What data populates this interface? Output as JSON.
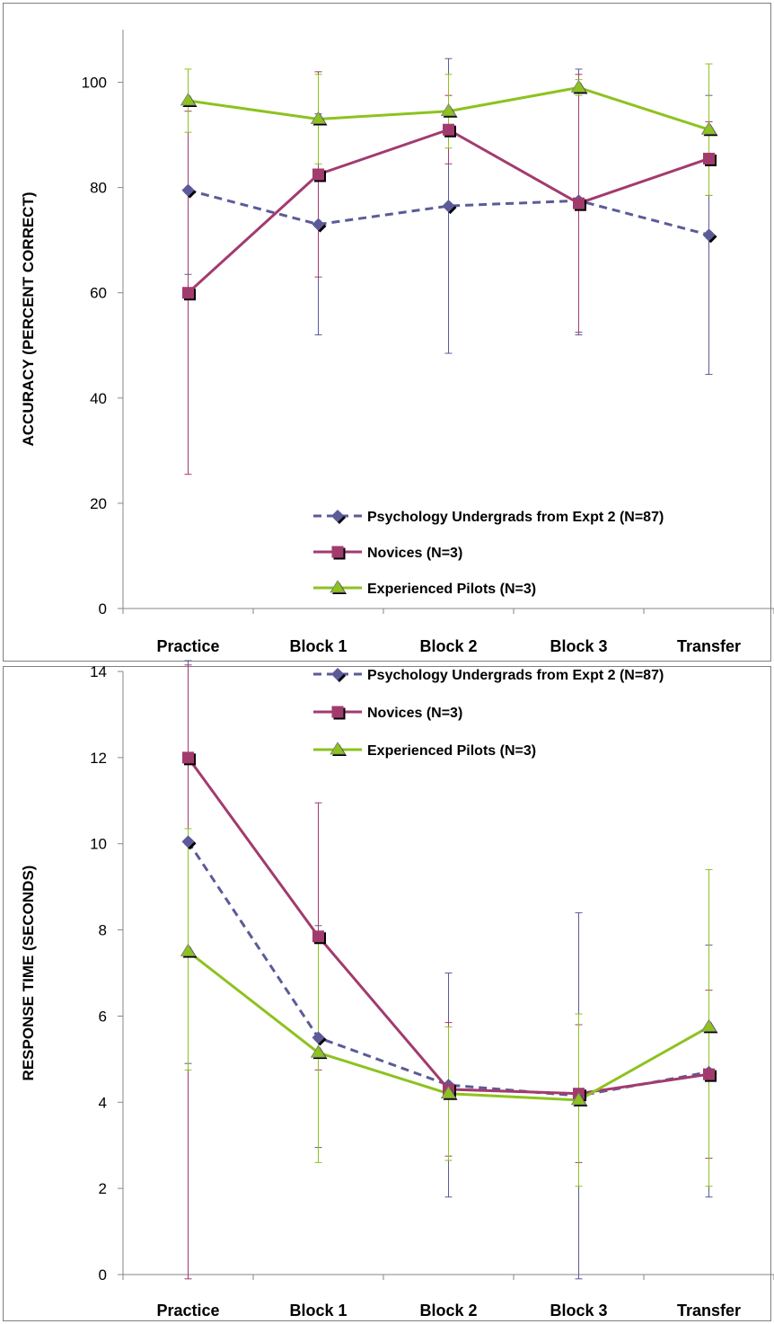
{
  "chart_data": [
    {
      "type": "line",
      "categories": [
        "Practice",
        "Block 1",
        "Block 2",
        "Block 3",
        "Transfer"
      ],
      "ylabel": "ACCURACY (PERCENT CORRECT)",
      "ylim": [
        0,
        110
      ],
      "yticks": [
        0,
        20,
        40,
        60,
        80,
        100
      ],
      "legend_position": "bottom-right",
      "series": [
        {
          "name": "Psychology Undergrads from Expt 2 (N=87)",
          "color": "#5b5b99",
          "marker": "diamond",
          "dash": "dashed",
          "values": [
            79.5,
            73,
            76.5,
            77.5,
            71
          ],
          "err_low": [
            63.5,
            52,
            48.5,
            52,
            44.5
          ],
          "err_high": [
            95.5,
            94,
            104.5,
            102.5,
            97.5
          ]
        },
        {
          "name": "Novices (N=3)",
          "color": "#a23b6d",
          "marker": "square",
          "dash": "solid",
          "values": [
            60,
            82.5,
            91,
            77,
            85.5
          ],
          "err_low": [
            25.5,
            63,
            84.5,
            52.5,
            78.5
          ],
          "err_high": [
            94.5,
            102,
            97.5,
            101.5,
            92.5
          ]
        },
        {
          "name": "Experienced Pilots (N=3)",
          "color": "#8dc21f",
          "marker": "triangle",
          "dash": "solid",
          "values": [
            96.5,
            93,
            94.5,
            99,
            91
          ],
          "err_low": [
            90.5,
            84.5,
            87.5,
            97.5,
            78.5
          ],
          "err_high": [
            102.5,
            101.5,
            101.5,
            100.5,
            103.5
          ]
        }
      ]
    },
    {
      "type": "line",
      "categories": [
        "Practice",
        "Block 1",
        "Block 2",
        "Block 3",
        "Transfer"
      ],
      "ylabel": "RESPONSE TIME (SECONDS)",
      "ylim": [
        0,
        14
      ],
      "yticks": [
        0,
        2,
        4,
        6,
        8,
        10,
        12,
        14
      ],
      "legend_position": "top-right",
      "series": [
        {
          "name": "Psychology Undergrads from Expt 2 (N=87)",
          "color": "#5b5b99",
          "marker": "diamond",
          "dash": "dashed",
          "values": [
            10.05,
            5.5,
            4.4,
            4.15,
            4.7
          ],
          "err_low": [
            4.9,
            2.95,
            1.8,
            -0.1,
            1.8
          ],
          "err_high": [
            15.2,
            8.1,
            7.0,
            8.4,
            7.65
          ]
        },
        {
          "name": "Novices (N=3)",
          "color": "#a23b6d",
          "marker": "square",
          "dash": "solid",
          "values": [
            12.0,
            7.85,
            4.3,
            4.2,
            4.65
          ],
          "err_low": [
            -0.1,
            4.75,
            2.75,
            2.6,
            2.7
          ],
          "err_high": [
            14.15,
            10.95,
            5.85,
            5.8,
            6.6
          ]
        },
        {
          "name": "Experienced Pilots (N=3)",
          "color": "#8dc21f",
          "marker": "triangle",
          "dash": "solid",
          "values": [
            7.5,
            5.15,
            4.2,
            4.05,
            5.75
          ],
          "err_low": [
            4.75,
            2.6,
            2.65,
            2.05,
            2.05
          ],
          "err_high": [
            10.35,
            7.8,
            5.75,
            6.05,
            9.4
          ]
        }
      ]
    }
  ]
}
